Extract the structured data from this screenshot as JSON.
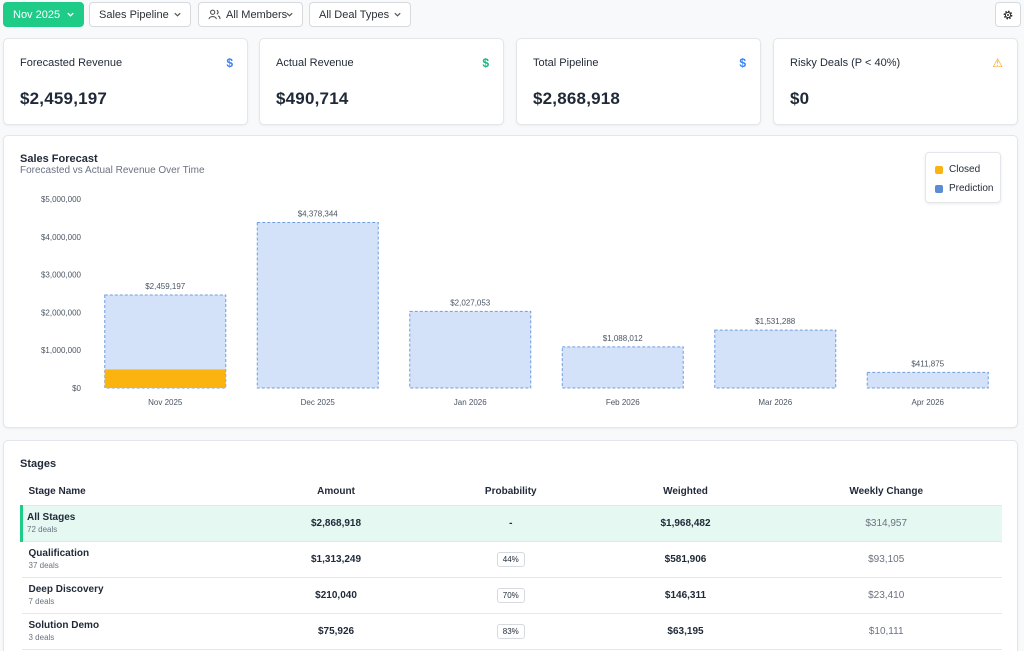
{
  "toolbar": {
    "period": "Nov 2025",
    "pipeline": "Sales Pipeline",
    "members": "All Members",
    "deal_types": "All Deal Types"
  },
  "kpis": [
    {
      "label": "Forecasted Revenue",
      "value": "$2,459,197",
      "icon": "dollar-icon",
      "icon_glyph": "$",
      "color": "#3b82f6"
    },
    {
      "label": "Actual Revenue",
      "value": "$490,714",
      "icon": "dollar-icon",
      "icon_glyph": "$",
      "color": "#10b981"
    },
    {
      "label": "Total Pipeline",
      "value": "$2,868,918",
      "icon": "dollar-icon",
      "icon_glyph": "$",
      "color": "#3b82f6"
    },
    {
      "label": "Risky Deals (P < 40%)",
      "value": "$0",
      "icon": "warning-icon",
      "icon_glyph": "⚠",
      "color": "#f59e0b"
    }
  ],
  "chart_data": {
    "type": "bar",
    "title": "Sales Forecast",
    "subtitle": "Forecasted vs Actual Revenue Over Time",
    "categories": [
      "Nov 2025",
      "Dec 2025",
      "Jan 2026",
      "Feb 2026",
      "Mar 2026",
      "Apr 2026"
    ],
    "series": [
      {
        "name": "Closed",
        "color": "#fbb40f",
        "values": [
          490714,
          0,
          0,
          0,
          0,
          0
        ]
      },
      {
        "name": "Prediction",
        "color": "#d3e1f9",
        "values": [
          1968483,
          4378344,
          2027053,
          1088012,
          1531288,
          411875
        ]
      }
    ],
    "totals": [
      2459197,
      4378344,
      2027053,
      1088012,
      1531288,
      411875
    ],
    "total_labels": [
      "$2,459,197",
      "$4,378,344",
      "$2,027,053",
      "$1,088,012",
      "$1,531,288",
      "$411,875"
    ],
    "ylim": [
      0,
      5000000
    ],
    "yticks": [
      0,
      1000000,
      2000000,
      3000000,
      4000000,
      5000000
    ],
    "ytick_labels": [
      "$0",
      "$1,000,000",
      "$2,000,000",
      "$3,000,000",
      "$4,000,000",
      "$5,000,000"
    ],
    "legend": {
      "position": "top-right",
      "entries": [
        "Closed",
        "Prediction"
      ],
      "colors": [
        "#fbb40f",
        "#5b8dd6"
      ]
    },
    "grid": false
  },
  "stages": {
    "title": "Stages",
    "columns": [
      "Stage Name",
      "Amount",
      "Probability",
      "Weighted",
      "Weekly Change"
    ],
    "rows": [
      {
        "name": "All Stages",
        "deals": "72 deals",
        "amount": "$2,868,918",
        "probability": "-",
        "weighted": "$1,968,482",
        "change": "$314,957"
      },
      {
        "name": "Qualification",
        "deals": "37 deals",
        "amount": "$1,313,249",
        "probability": "44%",
        "weighted": "$581,906",
        "change": "$93,105"
      },
      {
        "name": "Deep Discovery",
        "deals": "7 deals",
        "amount": "$210,040",
        "probability": "70%",
        "weighted": "$146,311",
        "change": "$23,410"
      },
      {
        "name": "Solution Demo",
        "deals": "3 deals",
        "amount": "$75,926",
        "probability": "83%",
        "weighted": "$63,195",
        "change": "$10,111"
      }
    ]
  }
}
